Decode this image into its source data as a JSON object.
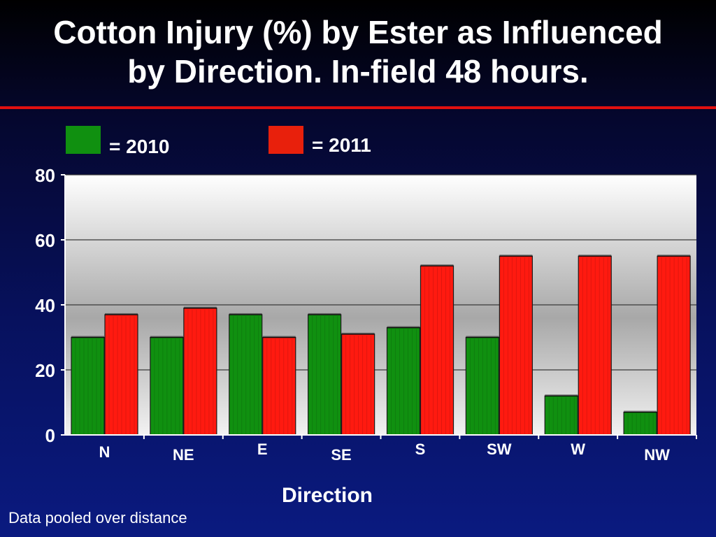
{
  "slide": {
    "title_line1": "Cotton Injury (%) by Ester as Influenced",
    "title_line2": "by Direction.  In-field 48 hours.",
    "footnote": "Data pooled over  distance"
  },
  "legend": [
    {
      "label": "= 2010",
      "color": "#109010"
    },
    {
      "label": "= 2011",
      "color": "#e8200c"
    }
  ],
  "chart_data": {
    "type": "bar",
    "title": "Cotton Injury (%) by Ester as Influenced by Direction.  In-field 48 hours.",
    "xlabel": "Direction",
    "ylabel": "",
    "categories": [
      "N",
      "NE",
      "E",
      "SE",
      "S",
      "SW",
      "W",
      "NW"
    ],
    "series": [
      {
        "name": "2010",
        "color": "#109010",
        "values": [
          30,
          30,
          37,
          37,
          33,
          30,
          12,
          7
        ]
      },
      {
        "name": "2011",
        "color": "#ff1a10",
        "values": [
          37,
          39,
          30,
          31,
          52,
          55,
          55,
          55
        ]
      }
    ],
    "ylim": [
      0,
      80
    ],
    "yticks": [
      0,
      20,
      40,
      60,
      80
    ],
    "grid": true,
    "legend_position": "top"
  }
}
